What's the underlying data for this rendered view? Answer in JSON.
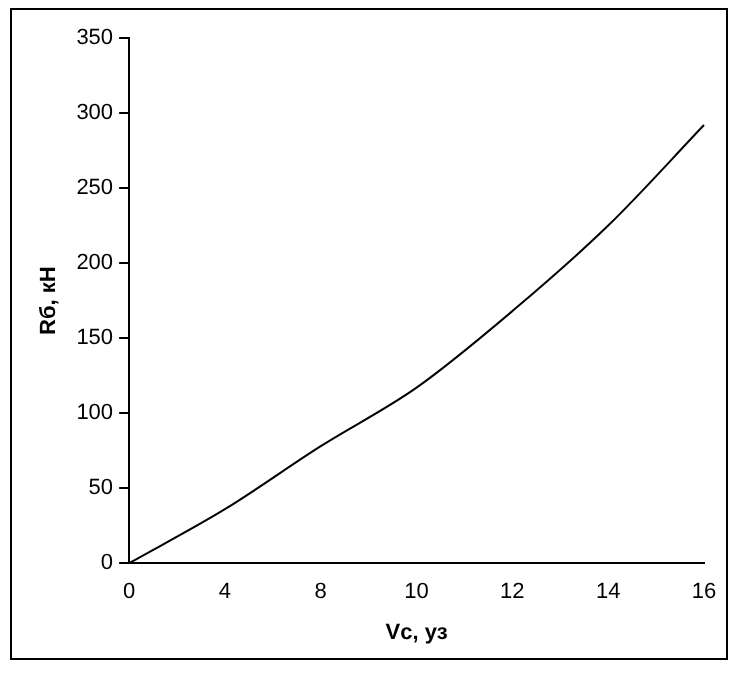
{
  "chart_data": {
    "type": "line",
    "xlabel": "Vc, уз",
    "ylabel": "Rб, кН",
    "categories": [
      "0",
      "4",
      "8",
      "10",
      "12",
      "14",
      "16"
    ],
    "series": [
      {
        "color": "#000000",
        "values": [
          0,
          36,
          78,
          117,
          168,
          225,
          292
        ]
      }
    ],
    "ylim": [
      0,
      350
    ],
    "yticks": [
      0,
      50,
      100,
      150,
      200,
      250,
      300,
      350
    ],
    "grid": false,
    "legend": false,
    "marker": "none",
    "line_style": "solid"
  }
}
